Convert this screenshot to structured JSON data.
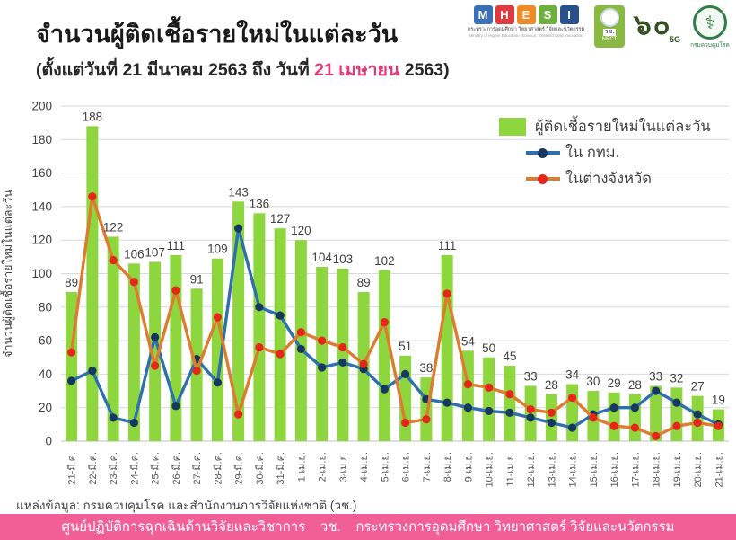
{
  "header": {
    "title": "จำนวนผู้ติดเชื้อรายใหม่ในแต่ละวัน",
    "subtitle_prefix": "(ตั้งแต่วันที่ 21 มีนาคม 2563 ถึง วันที่ ",
    "subtitle_highlight": "21 เมษายน",
    "subtitle_suffix": " 2563)",
    "highlight_color": "#e03a78"
  },
  "logos": {
    "mhesi": {
      "letters": [
        "M",
        "H",
        "E",
        "S",
        "I"
      ],
      "colors": [
        "#3b6fb6",
        "#de3a3f",
        "#f08a24",
        "#6faf3f",
        "#27508d"
      ],
      "line1": "กระทรวงการอุดมศึกษา วิทยาศาสตร์ วิจัยและนวัตกรรม",
      "line2": "Ministry of Higher Education, Science, Research and Innovation"
    },
    "nrct": {
      "line1": "วช.",
      "line2": "NRCT"
    },
    "sixty_5g": {
      "text": "๖๐",
      "sub": "5G"
    },
    "ddc": {
      "symbol": "⚕",
      "caption": "กรมควบคุมโรค"
    }
  },
  "chart_data": {
    "type": "bar",
    "title": "จำนวนผู้ติดเชื้อรายใหม่ในแต่ละวัน",
    "ylabel": "จำนวนผู้ติดเชื้อรายใหม่ในแต่ละวัน",
    "xlabel": "",
    "ylim": [
      0,
      200
    ],
    "ytick_step": 20,
    "grid": true,
    "legend_position": "top-right-inside",
    "categories": [
      "21-มี.ค.",
      "22-มี.ค.",
      "23-มี.ค.",
      "24-มี.ค.",
      "25-มี.ค.",
      "26-มี.ค.",
      "27-มี.ค.",
      "28-มี.ค.",
      "29-มี.ค.",
      "30-มี.ค.",
      "31-มี.ค.",
      "1-เม.ย.",
      "2-เม.ย.",
      "3-เม.ย.",
      "4-เม.ย.",
      "5-เม.ย.",
      "6-เม.ย.",
      "7-เม.ย.",
      "8-เม.ย.",
      "9-เม.ย.",
      "10-เม.ย.",
      "11-เม.ย.",
      "12-เม.ย.",
      "13-เม.ย.",
      "14-เม.ย.",
      "15-เม.ย.",
      "16-เม.ย.",
      "17-เม.ย.",
      "18-เม.ย.",
      "19-เม.ย.",
      "20-เม.ย.",
      "21-เม.ย."
    ],
    "series": [
      {
        "name": "ผู้ติดเชื้อรายใหม่ในแต่ละวัน",
        "type": "bar",
        "color": "#8ed63e",
        "values": [
          89,
          188,
          122,
          106,
          107,
          111,
          91,
          109,
          143,
          136,
          127,
          120,
          104,
          103,
          89,
          102,
          51,
          38,
          111,
          54,
          50,
          45,
          33,
          28,
          34,
          30,
          29,
          28,
          33,
          32,
          27,
          19
        ],
        "labels_shown": true
      },
      {
        "name": "ใน กทม.",
        "type": "line",
        "color": "#2e6fad",
        "marker_color": "#17375e",
        "values": [
          36,
          42,
          14,
          11,
          62,
          21,
          49,
          35,
          127,
          80,
          75,
          55,
          44,
          47,
          43,
          31,
          40,
          25,
          23,
          20,
          18,
          17,
          14,
          11,
          8,
          16,
          20,
          20,
          30,
          23,
          16,
          10
        ]
      },
      {
        "name": "ในต่างจังหวัด",
        "type": "line",
        "color": "#dd7b2f",
        "marker_color": "#e5261a",
        "values": [
          53,
          146,
          108,
          95,
          45,
          90,
          42,
          74,
          16,
          56,
          52,
          65,
          60,
          56,
          46,
          71,
          11,
          13,
          88,
          34,
          32,
          28,
          19,
          17,
          26,
          14,
          9,
          8,
          3,
          9,
          11,
          9
        ]
      }
    ]
  },
  "footer": {
    "source": "แหล่งข้อมูล: กรมควบคุมโรค และสำนักงานการวิจัยแห่งชาติ (วช.)",
    "banner": "ศูนย์ปฏิบัติการฉุกเฉินด้านวิจัยและวิชาการ    วช.    กระทรวงการอุดมศึกษา วิทยาศาสตร์ วิจัยและนวัตกรรม",
    "banner_color": "#f25f96"
  }
}
